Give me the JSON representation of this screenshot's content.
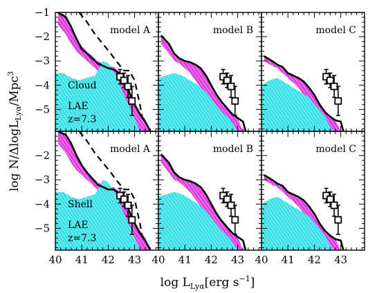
{
  "figure": {
    "xlabel_main": "log L",
    "xlabel_sub": "Lyα",
    "xlabel_unit": "[erg s",
    "xlabel_exp": "−1",
    "xlabel_close": "]",
    "ylabel_main": "log N/ΔlogL",
    "ylabel_sub": "Lyα",
    "ylabel_unit": "/Mpc",
    "ylabel_exp": "3"
  },
  "chart_data": [
    {
      "type": "area",
      "row": 0,
      "col": 0,
      "panel_label": "model A",
      "annotations": [
        "Cloud",
        "LAE",
        "z=7.3"
      ],
      "xlim": [
        40,
        43.9
      ],
      "ylim": [
        -5.9,
        -1
      ],
      "x_ticks": [
        40,
        41,
        42,
        43
      ],
      "y_ticks": [
        -1,
        -2,
        -3,
        -4,
        -5
      ],
      "lf": {
        "x": [
          40.1,
          40.4,
          40.6,
          40.8,
          41.0,
          41.2,
          41.4,
          41.6,
          41.8,
          42.0,
          42.2,
          42.4,
          42.6,
          42.8,
          43.0,
          43.2,
          43.4,
          43.6
        ],
        "y": [
          -1.0,
          -1.2,
          -1.6,
          -2.1,
          -2.5,
          -2.7,
          -2.9,
          -3.1,
          -3.2,
          -3.3,
          -3.35,
          -3.5,
          -3.8,
          -4.3,
          -4.8,
          -5.2,
          -5.5,
          -5.9
        ]
      },
      "magenta_band": {
        "x": [
          40.1,
          40.4,
          40.6,
          40.8,
          41.0,
          41.2,
          41.4,
          41.6,
          41.8,
          42.0,
          42.2,
          42.4,
          42.6,
          42.8,
          43.0,
          43.2,
          43.4,
          43.6
        ],
        "upper": [
          -1.0,
          -1.1,
          -1.5,
          -2.0,
          -2.4,
          -2.6,
          -2.8,
          -3.0,
          -3.1,
          -3.2,
          -3.25,
          -3.4,
          -3.7,
          -4.2,
          -4.7,
          -5.1,
          -5.4,
          -5.9
        ],
        "lower": [
          -1.5,
          -1.9,
          -2.3,
          -2.6,
          -2.8,
          -3.0,
          -3.2,
          -3.4,
          -3.6,
          -3.9,
          -4.3,
          -4.8,
          -5.3,
          -5.7,
          -5.9,
          -5.9,
          -5.9,
          -5.9
        ]
      },
      "cyan_band": {
        "x": [
          40.0,
          40.3,
          40.6,
          40.9,
          41.2,
          41.5,
          41.8,
          42.0,
          42.3,
          42.6,
          42.9,
          43.2
        ],
        "upper": [
          -3.5,
          -3.5,
          -3.7,
          -3.8,
          -3.7,
          -3.6,
          -3.0,
          -3.1,
          -3.6,
          -4.4,
          -5.1,
          -5.9
        ],
        "lower": [
          -5.9,
          -5.9,
          -5.9,
          -5.9,
          -5.9,
          -5.9,
          -5.9,
          -5.9,
          -5.9,
          -5.9,
          -5.9,
          -5.9
        ]
      },
      "dashed": {
        "x": [
          40.9,
          41.2,
          41.5,
          41.8,
          42.1,
          42.3,
          42.6,
          42.8,
          43.0,
          43.1,
          43.2,
          43.3
        ],
        "y": [
          -1.0,
          -1.4,
          -1.9,
          -2.3,
          -2.7,
          -3.0,
          -3.4,
          -3.4,
          -3.8,
          -4.3,
          -4.8,
          -5.4
        ]
      },
      "obs_data": {
        "x": [
          42.45,
          42.6,
          42.75,
          42.9
        ],
        "y": [
          -3.65,
          -3.8,
          -4.05,
          -4.65
        ],
        "yerr": [
          0.3,
          0.3,
          0.45,
          0.6
        ]
      }
    },
    {
      "type": "area",
      "row": 0,
      "col": 1,
      "panel_label": "model B",
      "annotations": [],
      "xlim": [
        40,
        43.9
      ],
      "ylim": [
        -5.9,
        -1
      ],
      "x_ticks": [
        40,
        41,
        42,
        43
      ],
      "y_ticks": [
        -1,
        -2,
        -3,
        -4,
        -5
      ],
      "lf": {
        "x": [
          40.1,
          40.4,
          40.6,
          40.8,
          41.0,
          41.2,
          41.4,
          41.6,
          41.8,
          42.0,
          42.2,
          42.4,
          42.6,
          42.8,
          43.0,
          43.2,
          43.3
        ],
        "y": [
          -1.95,
          -2.3,
          -2.7,
          -2.9,
          -3.0,
          -3.05,
          -3.15,
          -3.3,
          -3.6,
          -4.0,
          -4.4,
          -4.7,
          -4.95,
          -5.2,
          -5.35,
          -5.5,
          -5.9
        ]
      },
      "magenta_band": {
        "x": [
          40.1,
          40.4,
          40.6,
          40.8,
          41.0,
          41.2,
          41.4,
          41.6,
          41.8,
          42.0,
          42.2,
          42.4,
          42.6,
          42.8,
          43.0,
          43.2
        ],
        "upper": [
          -1.95,
          -2.3,
          -2.7,
          -2.9,
          -3.0,
          -3.05,
          -3.15,
          -3.3,
          -3.6,
          -4.0,
          -4.4,
          -4.7,
          -4.95,
          -5.2,
          -5.35,
          -5.9
        ],
        "lower": [
          -2.3,
          -2.7,
          -3.0,
          -3.1,
          -3.3,
          -3.5,
          -3.8,
          -4.1,
          -4.5,
          -4.9,
          -5.2,
          -5.5,
          -5.7,
          -5.9,
          -5.9,
          -5.9
        ]
      },
      "cyan_band": {
        "x": [
          40.0,
          40.3,
          40.6,
          40.9,
          41.2,
          41.5,
          41.8,
          42.1,
          42.4,
          42.7,
          43.0
        ],
        "upper": [
          -3.7,
          -3.6,
          -3.5,
          -3.6,
          -3.8,
          -4.0,
          -4.3,
          -4.7,
          -5.1,
          -5.4,
          -5.9
        ],
        "lower": [
          -5.9,
          -5.9,
          -5.9,
          -5.9,
          -5.9,
          -5.9,
          -5.9,
          -5.9,
          -5.9,
          -5.9,
          -5.9
        ]
      },
      "dashed": null,
      "obs_data": {
        "x": [
          42.45,
          42.6,
          42.75,
          42.9
        ],
        "y": [
          -3.65,
          -3.8,
          -4.05,
          -4.65
        ],
        "yerr": [
          0.3,
          0.3,
          0.45,
          0.6
        ]
      }
    },
    {
      "type": "area",
      "row": 0,
      "col": 2,
      "panel_label": "model C",
      "annotations": [],
      "xlim": [
        40,
        43.9
      ],
      "ylim": [
        -5.9,
        -1
      ],
      "x_ticks": [
        40,
        41,
        42,
        43
      ],
      "y_ticks": [
        -1,
        -2,
        -3,
        -4,
        -5
      ],
      "lf": {
        "x": [
          40.1,
          40.4,
          40.6,
          40.8,
          41.0,
          41.2,
          41.4,
          41.6,
          41.8,
          42.0,
          42.2,
          42.4,
          42.6,
          42.8,
          43.0,
          43.1
        ],
        "y": [
          -2.8,
          -3.0,
          -3.15,
          -3.25,
          -3.5,
          -3.6,
          -3.7,
          -3.85,
          -4.1,
          -4.4,
          -4.8,
          -5.1,
          -5.3,
          -5.45,
          -5.5,
          -5.9
        ]
      },
      "magenta_band": {
        "x": [
          40.1,
          40.4,
          40.6,
          40.8,
          41.0,
          41.2,
          41.4,
          41.6,
          41.8,
          42.0,
          42.2,
          42.4,
          42.6,
          42.8,
          43.0
        ],
        "upper": [
          -2.8,
          -3.0,
          -3.15,
          -3.25,
          -3.5,
          -3.6,
          -3.7,
          -3.85,
          -4.1,
          -4.4,
          -4.8,
          -5.1,
          -5.3,
          -5.45,
          -5.9
        ],
        "lower": [
          -3.0,
          -3.2,
          -3.3,
          -3.5,
          -3.7,
          -3.9,
          -4.1,
          -4.4,
          -4.8,
          -5.1,
          -5.4,
          -5.6,
          -5.8,
          -5.9,
          -5.9
        ]
      },
      "cyan_band": {
        "x": [
          40.0,
          40.3,
          40.6,
          40.9,
          41.2,
          41.5,
          41.8,
          42.1,
          42.4,
          42.7
        ],
        "upper": [
          -4.0,
          -3.8,
          -3.7,
          -3.9,
          -4.1,
          -4.3,
          -4.5,
          -4.9,
          -5.3,
          -5.9
        ],
        "lower": [
          -5.9,
          -5.9,
          -5.9,
          -5.9,
          -5.9,
          -5.9,
          -5.9,
          -5.9,
          -5.9,
          -5.9
        ]
      },
      "dashed": null,
      "obs_data": {
        "x": [
          42.45,
          42.6,
          42.75,
          42.9
        ],
        "y": [
          -3.65,
          -3.8,
          -4.05,
          -4.65
        ],
        "yerr": [
          0.3,
          0.3,
          0.45,
          0.6
        ]
      }
    },
    {
      "type": "area",
      "row": 1,
      "col": 0,
      "panel_label": "model A",
      "annotations": [
        "Shell",
        "LAE",
        "z=7.3"
      ],
      "xlim": [
        40,
        43.9
      ],
      "ylim": [
        -5.9,
        -1
      ],
      "x_ticks": [
        40,
        41,
        42,
        43
      ],
      "y_ticks": [
        -1,
        -2,
        -3,
        -4,
        -5
      ],
      "lf": {
        "x": [
          40.1,
          40.4,
          40.6,
          40.8,
          41.0,
          41.2,
          41.4,
          41.6,
          41.8,
          42.0,
          42.2,
          42.4,
          42.6,
          42.8,
          43.0,
          43.2,
          43.4,
          43.6
        ],
        "y": [
          -1.0,
          -1.15,
          -1.5,
          -2.0,
          -2.4,
          -2.7,
          -2.95,
          -3.2,
          -3.3,
          -3.4,
          -3.4,
          -3.55,
          -3.8,
          -4.3,
          -4.8,
          -5.2,
          -5.5,
          -5.9
        ]
      },
      "magenta_band": {
        "x": [
          40.1,
          40.4,
          40.6,
          40.8,
          41.0,
          41.2,
          41.4,
          41.6,
          41.8,
          42.0,
          42.2,
          42.4,
          42.6,
          42.8,
          43.0,
          43.2,
          43.4,
          43.6
        ],
        "upper": [
          -1.0,
          -1.1,
          -1.45,
          -1.95,
          -2.35,
          -2.65,
          -2.9,
          -3.1,
          -3.2,
          -3.3,
          -3.3,
          -3.45,
          -3.7,
          -4.2,
          -4.7,
          -5.1,
          -5.4,
          -5.9
        ],
        "lower": [
          -1.5,
          -1.9,
          -2.3,
          -2.6,
          -2.8,
          -3.0,
          -3.2,
          -3.4,
          -3.6,
          -3.9,
          -4.3,
          -4.8,
          -5.3,
          -5.7,
          -5.9,
          -5.9,
          -5.9,
          -5.9
        ]
      },
      "cyan_band": {
        "x": [
          40.0,
          40.3,
          40.6,
          40.9,
          41.2,
          41.5,
          41.8,
          42.0,
          42.3,
          42.6,
          42.9,
          43.2
        ],
        "upper": [
          -3.5,
          -3.5,
          -3.7,
          -3.8,
          -3.7,
          -3.6,
          -3.0,
          -3.1,
          -3.6,
          -4.4,
          -5.1,
          -5.9
        ],
        "lower": [
          -5.9,
          -5.9,
          -5.9,
          -5.9,
          -5.9,
          -5.9,
          -5.9,
          -5.9,
          -5.9,
          -5.9,
          -5.9,
          -5.9
        ]
      },
      "dashed": {
        "x": [
          40.9,
          41.2,
          41.5,
          41.8,
          42.1,
          42.3,
          42.6,
          42.8,
          43.0,
          43.1,
          43.2,
          43.3
        ],
        "y": [
          -1.0,
          -1.4,
          -1.9,
          -2.3,
          -2.7,
          -3.0,
          -3.4,
          -3.4,
          -3.8,
          -4.3,
          -4.8,
          -5.4
        ]
      },
      "obs_data": {
        "x": [
          42.45,
          42.6,
          42.75,
          42.9
        ],
        "y": [
          -3.65,
          -3.8,
          -4.05,
          -4.65
        ],
        "yerr": [
          0.3,
          0.3,
          0.45,
          0.6
        ]
      }
    },
    {
      "type": "area",
      "row": 1,
      "col": 1,
      "panel_label": "model B",
      "annotations": [],
      "xlim": [
        40,
        43.9
      ],
      "ylim": [
        -5.9,
        -1
      ],
      "x_ticks": [
        40,
        41,
        42,
        43
      ],
      "y_ticks": [
        -1,
        -2,
        -3,
        -4,
        -5
      ],
      "lf": {
        "x": [
          40.1,
          40.4,
          40.6,
          40.8,
          41.0,
          41.2,
          41.4,
          41.6,
          41.8,
          42.0,
          42.2,
          42.4,
          42.6,
          42.8,
          43.0,
          43.2,
          43.3
        ],
        "y": [
          -1.95,
          -2.3,
          -2.7,
          -2.9,
          -3.0,
          -3.05,
          -3.15,
          -3.3,
          -3.6,
          -4.0,
          -4.4,
          -4.7,
          -4.95,
          -5.2,
          -5.35,
          -5.5,
          -5.9
        ]
      },
      "magenta_band": {
        "x": [
          40.1,
          40.4,
          40.6,
          40.8,
          41.0,
          41.2,
          41.4,
          41.6,
          41.8,
          42.0,
          42.2,
          42.4,
          42.6,
          42.8,
          43.0,
          43.2
        ],
        "upper": [
          -1.95,
          -2.3,
          -2.7,
          -2.9,
          -3.0,
          -3.05,
          -3.15,
          -3.3,
          -3.6,
          -4.0,
          -4.4,
          -4.7,
          -4.95,
          -5.2,
          -5.35,
          -5.9
        ],
        "lower": [
          -2.3,
          -2.7,
          -3.0,
          -3.1,
          -3.3,
          -3.5,
          -3.8,
          -4.1,
          -4.5,
          -4.9,
          -5.2,
          -5.5,
          -5.7,
          -5.9,
          -5.9,
          -5.9
        ]
      },
      "cyan_band": {
        "x": [
          40.0,
          40.3,
          40.6,
          40.9,
          41.2,
          41.5,
          41.8,
          42.1,
          42.4,
          42.7,
          43.0
        ],
        "upper": [
          -3.7,
          -3.6,
          -3.5,
          -3.6,
          -3.8,
          -4.0,
          -4.3,
          -4.7,
          -5.1,
          -5.4,
          -5.9
        ],
        "lower": [
          -5.9,
          -5.9,
          -5.9,
          -5.9,
          -5.9,
          -5.9,
          -5.9,
          -5.9,
          -5.9,
          -5.9,
          -5.9
        ]
      },
      "dashed": null,
      "obs_data": {
        "x": [
          42.45,
          42.6,
          42.75,
          42.9
        ],
        "y": [
          -3.65,
          -3.8,
          -4.05,
          -4.65
        ],
        "yerr": [
          0.3,
          0.3,
          0.45,
          0.6
        ]
      }
    },
    {
      "type": "area",
      "row": 1,
      "col": 2,
      "panel_label": "model C",
      "annotations": [],
      "xlim": [
        40,
        43.9
      ],
      "ylim": [
        -5.9,
        -1
      ],
      "x_ticks": [
        40,
        41,
        42,
        43
      ],
      "y_ticks": [
        -1,
        -2,
        -3,
        -4,
        -5
      ],
      "lf": {
        "x": [
          40.1,
          40.4,
          40.6,
          40.8,
          41.0,
          41.2,
          41.4,
          41.6,
          41.8,
          42.0,
          42.2,
          42.4,
          42.6,
          42.8,
          43.0,
          43.1
        ],
        "y": [
          -2.8,
          -3.0,
          -3.15,
          -3.25,
          -3.5,
          -3.6,
          -3.7,
          -3.85,
          -4.1,
          -4.4,
          -4.8,
          -5.1,
          -5.3,
          -5.45,
          -5.5,
          -5.9
        ]
      },
      "magenta_band": {
        "x": [
          40.1,
          40.4,
          40.6,
          40.8,
          41.0,
          41.2,
          41.4,
          41.6,
          41.8,
          42.0,
          42.2,
          42.4,
          42.6,
          42.8,
          43.0
        ],
        "upper": [
          -2.8,
          -3.0,
          -3.15,
          -3.25,
          -3.5,
          -3.6,
          -3.7,
          -3.85,
          -4.1,
          -4.4,
          -4.8,
          -5.1,
          -5.3,
          -5.45,
          -5.9
        ],
        "lower": [
          -3.0,
          -3.2,
          -3.3,
          -3.5,
          -3.7,
          -3.9,
          -4.1,
          -4.4,
          -4.8,
          -5.1,
          -5.4,
          -5.6,
          -5.8,
          -5.9,
          -5.9
        ]
      },
      "cyan_band": {
        "x": [
          40.0,
          40.3,
          40.6,
          40.9,
          41.2,
          41.5,
          41.8,
          42.1,
          42.4,
          42.7
        ],
        "upper": [
          -4.0,
          -3.8,
          -3.7,
          -3.9,
          -4.1,
          -4.3,
          -4.5,
          -4.9,
          -5.3,
          -5.9
        ],
        "lower": [
          -5.9,
          -5.9,
          -5.9,
          -5.9,
          -5.9,
          -5.9,
          -5.9,
          -5.9,
          -5.9,
          -5.9
        ]
      },
      "dashed": null,
      "obs_data": {
        "x": [
          42.45,
          42.6,
          42.75,
          42.9
        ],
        "y": [
          -3.65,
          -3.8,
          -4.05,
          -4.65
        ],
        "yerr": [
          0.3,
          0.3,
          0.45,
          0.6
        ]
      }
    }
  ]
}
